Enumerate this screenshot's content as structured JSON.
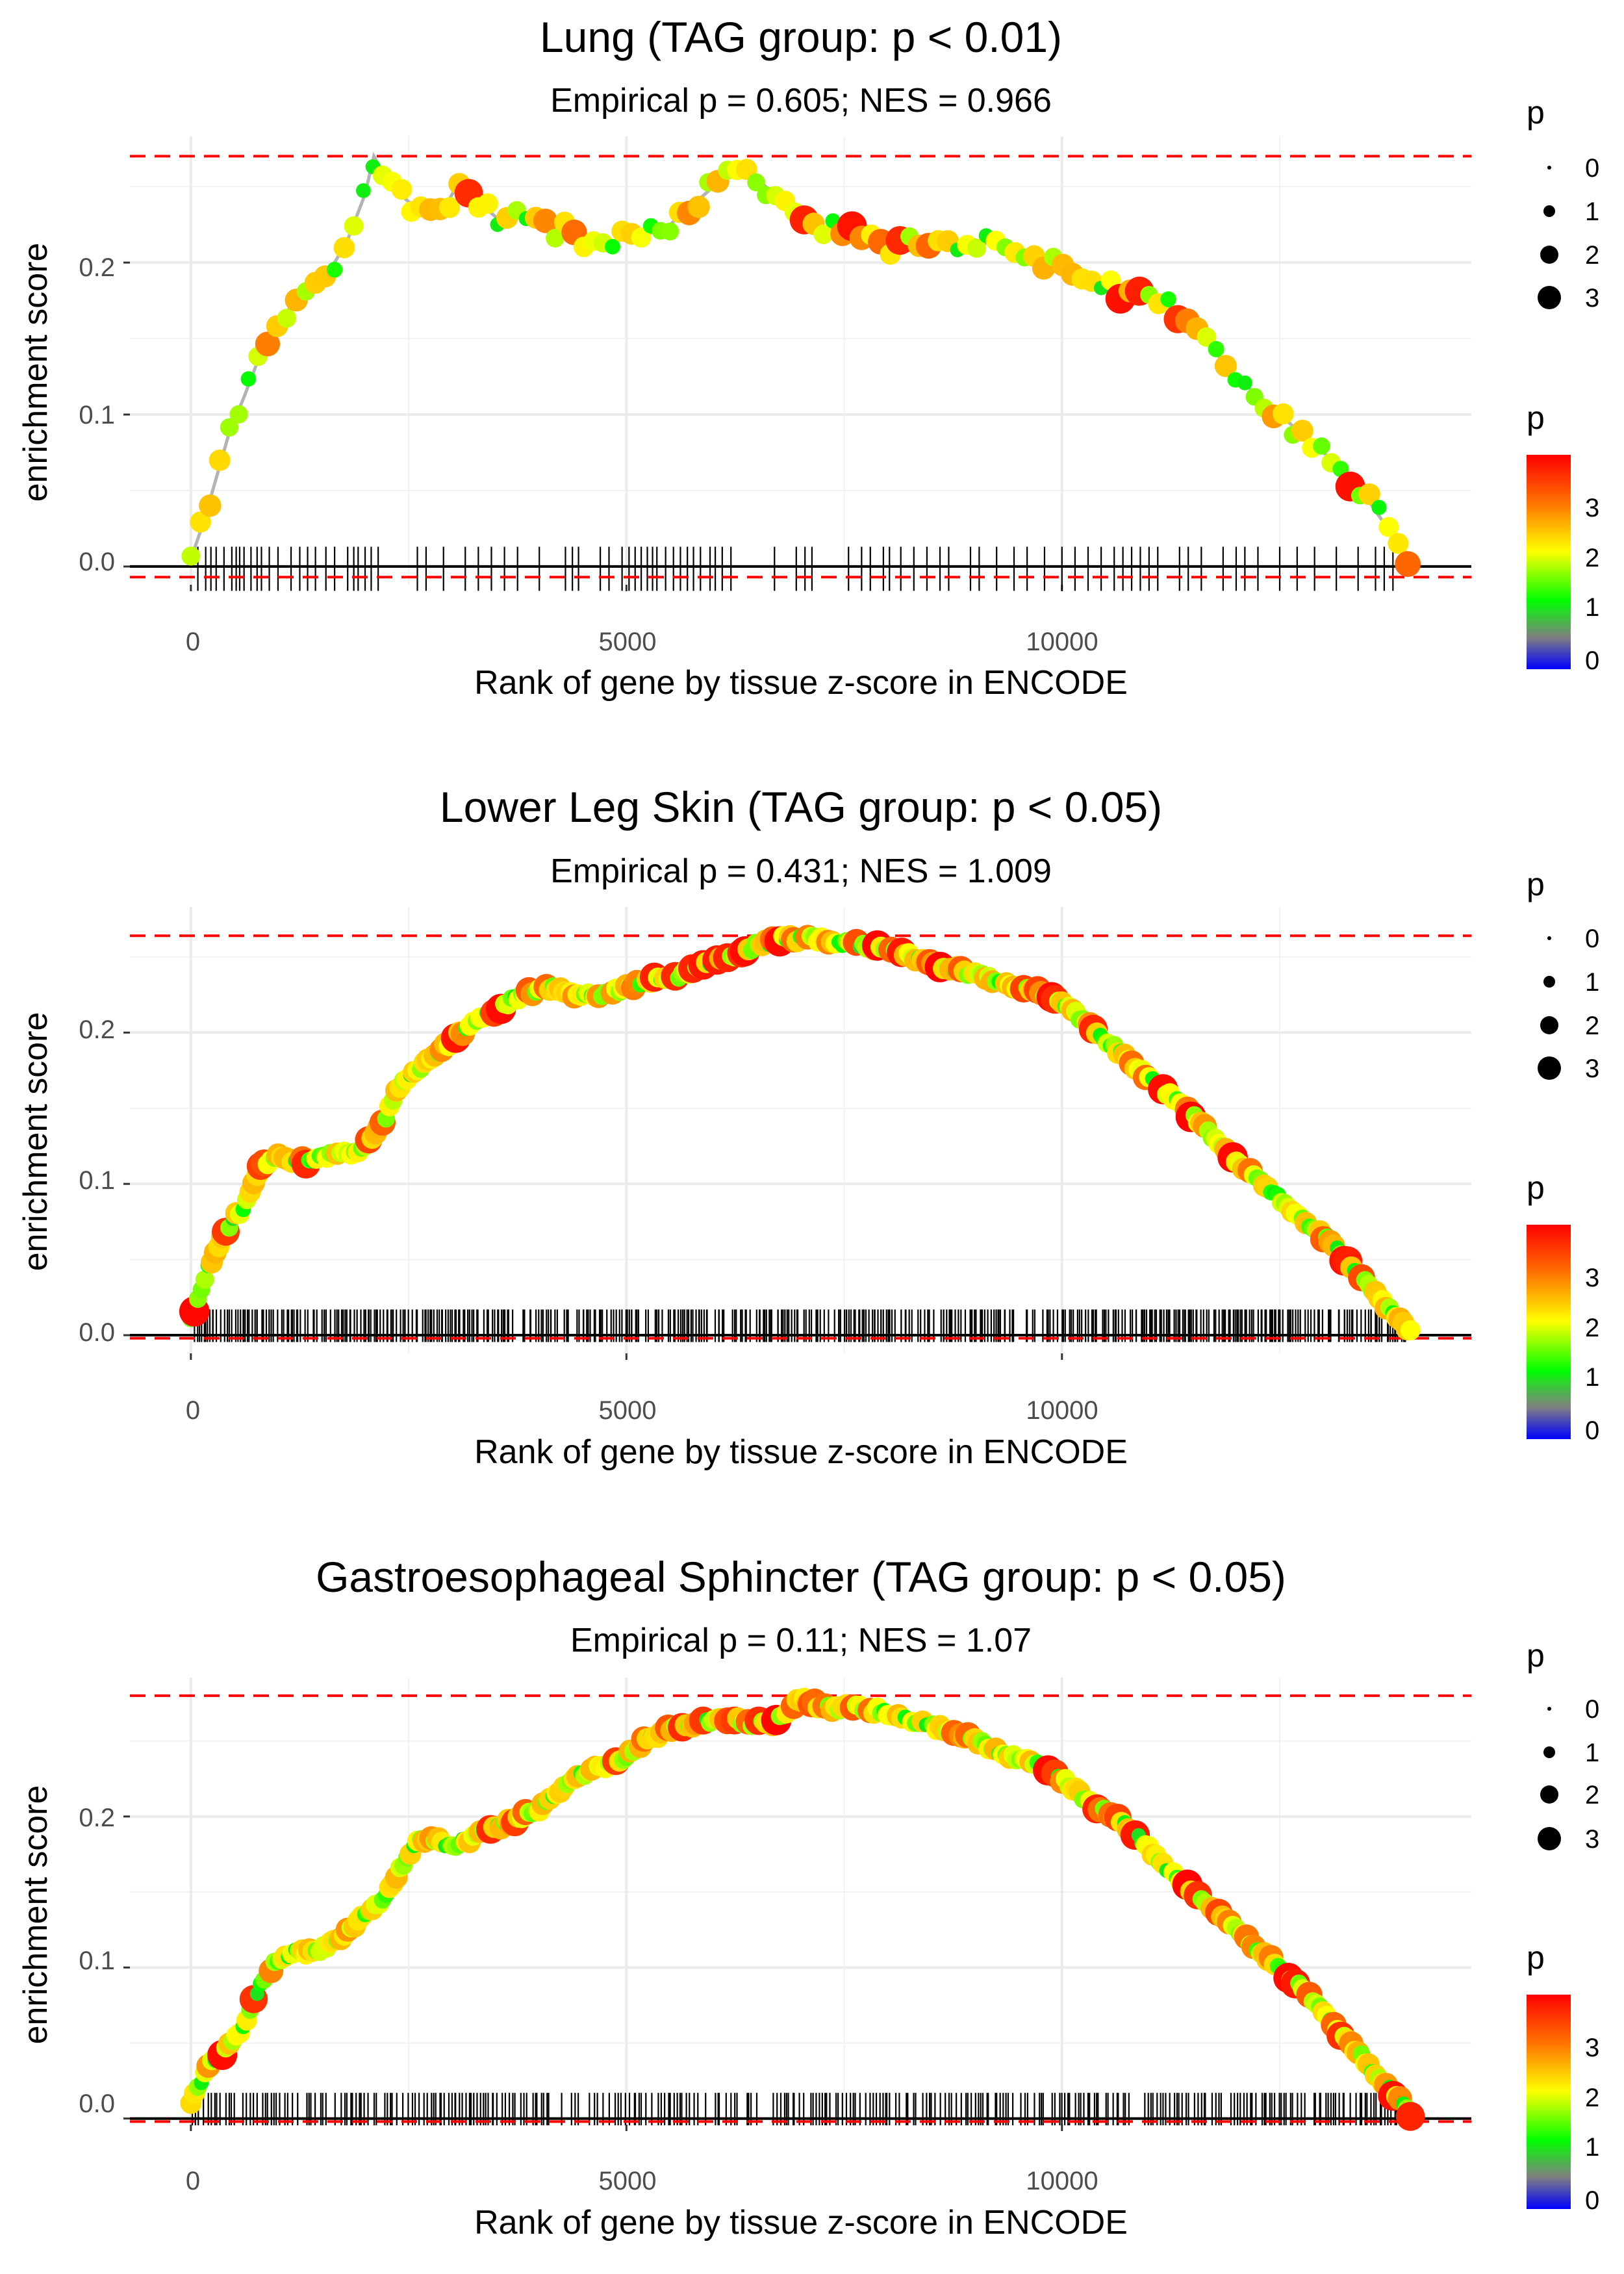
{
  "legend": {
    "size_title": "p",
    "size_labels": [
      "0",
      "1",
      "2",
      "3"
    ],
    "color_title": "p",
    "color_labels": [
      "3",
      "2",
      "1",
      "0"
    ]
  },
  "gradient_colors": [
    "#ff0000",
    "#ff7000",
    "#ffff00",
    "#00ff00",
    "#808080",
    "#0000ff"
  ],
  "chart_data": [
    {
      "type": "line",
      "title": "Lung (TAG group: p < 0.01)",
      "subtitle": "Empirical p = 0.605; NES = 0.966",
      "xlabel": "Rank of gene by tissue z-score in ENCODE",
      "ylabel": "enrichment score",
      "xlim": [
        -700,
        14700
      ],
      "ylim": [
        -0.012,
        0.283
      ],
      "xticks": [
        0,
        5000,
        10000
      ],
      "xtick_labels": [
        "0",
        "5000",
        "10000"
      ],
      "yticks": [
        0.0,
        0.1,
        0.2
      ],
      "ytick_labels": [
        "0.0",
        "0.1",
        "0.2"
      ],
      "hlines": {
        "max": 0.27,
        "min": -0.007
      },
      "grid": true,
      "curve": [
        [
          0,
          0.005
        ],
        [
          150,
          0.03
        ],
        [
          300,
          0.06
        ],
        [
          450,
          0.09
        ],
        [
          600,
          0.11
        ],
        [
          800,
          0.14
        ],
        [
          1000,
          0.16
        ],
        [
          1200,
          0.175
        ],
        [
          1400,
          0.18
        ],
        [
          1600,
          0.195
        ],
        [
          1800,
          0.215
        ],
        [
          2000,
          0.245
        ],
        [
          2100,
          0.27
        ],
        [
          2300,
          0.25
        ],
        [
          2500,
          0.24
        ],
        [
          2700,
          0.235
        ],
        [
          2900,
          0.235
        ],
        [
          3100,
          0.255
        ],
        [
          3300,
          0.24
        ],
        [
          3500,
          0.23
        ],
        [
          3700,
          0.23
        ],
        [
          3900,
          0.23
        ],
        [
          4100,
          0.22
        ],
        [
          4300,
          0.225
        ],
        [
          4500,
          0.215
        ],
        [
          4700,
          0.21
        ],
        [
          4900,
          0.215
        ],
        [
          5100,
          0.215
        ],
        [
          5300,
          0.22
        ],
        [
          5500,
          0.225
        ],
        [
          5700,
          0.235
        ],
        [
          5900,
          0.245
        ],
        [
          6100,
          0.255
        ],
        [
          6300,
          0.265
        ],
        [
          6600,
          0.25
        ],
        [
          6900,
          0.235
        ],
        [
          7200,
          0.225
        ],
        [
          7500,
          0.22
        ],
        [
          7800,
          0.215
        ],
        [
          8100,
          0.21
        ],
        [
          8400,
          0.215
        ],
        [
          8700,
          0.21
        ],
        [
          9000,
          0.215
        ],
        [
          9300,
          0.21
        ],
        [
          9600,
          0.205
        ],
        [
          9900,
          0.2
        ],
        [
          10200,
          0.19
        ],
        [
          10500,
          0.185
        ],
        [
          10800,
          0.18
        ],
        [
          11100,
          0.175
        ],
        [
          11400,
          0.165
        ],
        [
          11700,
          0.145
        ],
        [
          12000,
          0.125
        ],
        [
          12300,
          0.11
        ],
        [
          12600,
          0.095
        ],
        [
          12900,
          0.08
        ],
        [
          13200,
          0.065
        ],
        [
          13500,
          0.045
        ],
        [
          13800,
          0.02
        ],
        [
          14000,
          0.005
        ]
      ],
      "hits": [
        80,
        170,
        230,
        290,
        380,
        470,
        520,
        560,
        610,
        690,
        760,
        810,
        900,
        1000,
        1150,
        1250,
        1340,
        1430,
        1550,
        1650,
        1800,
        1870,
        1920,
        2000,
        2070,
        2150,
        2600,
        2700,
        2900,
        3150,
        3300,
        3450,
        3600,
        3750,
        4000,
        4300,
        4380,
        4450,
        4700,
        4800,
        4950,
        5030,
        5100,
        5170,
        5240,
        5300,
        5350,
        5450,
        5540,
        5620,
        5700,
        5770,
        5850,
        5960,
        6020,
        6100,
        6200,
        6700,
        6950,
        7050,
        7130,
        7550,
        7700,
        7800,
        7950,
        8020,
        8150,
        8300,
        8450,
        8600,
        8700,
        8950,
        9050,
        9250,
        9450,
        9600,
        9800,
        10000,
        10150,
        10300,
        10450,
        10600,
        10700,
        10800,
        10900,
        11000,
        11100,
        11350,
        11450,
        11600,
        11850,
        12000,
        12100,
        12250,
        12500,
        12700,
        12900,
        13150,
        13400,
        13600,
        13700,
        13800
      ]
    },
    {
      "type": "line",
      "title": "Lower Leg Skin (TAG group: p < 0.05)",
      "subtitle": "Empirical p = 0.431; NES = 1.009",
      "xlabel": "Rank of gene by tissue z-score in ENCODE",
      "ylabel": "enrichment score",
      "xlim": [
        -700,
        14700
      ],
      "ylim": [
        -0.012,
        0.283
      ],
      "xticks": [
        0,
        5000,
        10000
      ],
      "xtick_labels": [
        "0",
        "5000",
        "10000"
      ],
      "yticks": [
        0.0,
        0.1,
        0.2
      ],
      "ytick_labels": [
        "0.0",
        "0.1",
        "0.2"
      ],
      "hlines": {
        "max": 0.264,
        "min": -0.002
      },
      "grid": true,
      "curve": [
        [
          0,
          0.01
        ],
        [
          200,
          0.045
        ],
        [
          400,
          0.07
        ],
        [
          600,
          0.085
        ],
        [
          800,
          0.11
        ],
        [
          1000,
          0.12
        ],
        [
          1200,
          0.115
        ],
        [
          1400,
          0.115
        ],
        [
          1600,
          0.12
        ],
        [
          1800,
          0.12
        ],
        [
          2000,
          0.125
        ],
        [
          2200,
          0.14
        ],
        [
          2400,
          0.165
        ],
        [
          2600,
          0.175
        ],
        [
          2800,
          0.185
        ],
        [
          3000,
          0.195
        ],
        [
          3200,
          0.205
        ],
        [
          3500,
          0.215
        ],
        [
          3800,
          0.225
        ],
        [
          4100,
          0.23
        ],
        [
          4400,
          0.225
        ],
        [
          4700,
          0.225
        ],
        [
          5000,
          0.23
        ],
        [
          5300,
          0.235
        ],
        [
          5600,
          0.238
        ],
        [
          5900,
          0.245
        ],
        [
          6200,
          0.25
        ],
        [
          6500,
          0.258
        ],
        [
          6800,
          0.262
        ],
        [
          7100,
          0.262
        ],
        [
          7400,
          0.26
        ],
        [
          7700,
          0.258
        ],
        [
          8000,
          0.255
        ],
        [
          8300,
          0.25
        ],
        [
          8600,
          0.245
        ],
        [
          8900,
          0.24
        ],
        [
          9200,
          0.235
        ],
        [
          9500,
          0.23
        ],
        [
          9800,
          0.225
        ],
        [
          10100,
          0.215
        ],
        [
          10400,
          0.2
        ],
        [
          10700,
          0.185
        ],
        [
          11000,
          0.17
        ],
        [
          11300,
          0.155
        ],
        [
          11600,
          0.14
        ],
        [
          11900,
          0.12
        ],
        [
          12200,
          0.105
        ],
        [
          12500,
          0.09
        ],
        [
          12800,
          0.075
        ],
        [
          13100,
          0.06
        ],
        [
          13400,
          0.04
        ],
        [
          13700,
          0.02
        ],
        [
          14000,
          0.002
        ]
      ],
      "hits_density": 600
    },
    {
      "type": "line",
      "title": "Gastroesophageal Sphincter (TAG group: p < 0.05)",
      "subtitle": "Empirical p = 0.11; NES = 1.07",
      "xlabel": "Rank of gene by tissue z-score in ENCODE",
      "ylabel": "enrichment score",
      "xlim": [
        -700,
        14700
      ],
      "ylim": [
        -0.004,
        0.292
      ],
      "xticks": [
        0,
        5000,
        10000
      ],
      "xtick_labels": [
        "0",
        "5000",
        "10000"
      ],
      "yticks": [
        0.0,
        0.1,
        0.2
      ],
      "ytick_labels": [
        "0.0",
        "0.1",
        "0.2"
      ],
      "hlines": {
        "max": 0.28,
        "min": -0.002
      },
      "grid": true,
      "curve": [
        [
          0,
          0.01
        ],
        [
          200,
          0.035
        ],
        [
          400,
          0.045
        ],
        [
          600,
          0.06
        ],
        [
          800,
          0.09
        ],
        [
          1000,
          0.105
        ],
        [
          1200,
          0.11
        ],
        [
          1400,
          0.11
        ],
        [
          1600,
          0.115
        ],
        [
          1800,
          0.125
        ],
        [
          2000,
          0.135
        ],
        [
          2200,
          0.145
        ],
        [
          2400,
          0.165
        ],
        [
          2600,
          0.185
        ],
        [
          2800,
          0.185
        ],
        [
          3000,
          0.18
        ],
        [
          3200,
          0.185
        ],
        [
          3400,
          0.19
        ],
        [
          3600,
          0.195
        ],
        [
          3800,
          0.2
        ],
        [
          4000,
          0.205
        ],
        [
          4200,
          0.215
        ],
        [
          4400,
          0.225
        ],
        [
          4600,
          0.23
        ],
        [
          4800,
          0.235
        ],
        [
          5000,
          0.24
        ],
        [
          5200,
          0.25
        ],
        [
          5500,
          0.258
        ],
        [
          5800,
          0.262
        ],
        [
          6100,
          0.265
        ],
        [
          6400,
          0.262
        ],
        [
          6700,
          0.262
        ],
        [
          7000,
          0.278
        ],
        [
          7300,
          0.272
        ],
        [
          7600,
          0.272
        ],
        [
          7900,
          0.27
        ],
        [
          8200,
          0.265
        ],
        [
          8500,
          0.26
        ],
        [
          8800,
          0.255
        ],
        [
          9100,
          0.248
        ],
        [
          9400,
          0.24
        ],
        [
          9700,
          0.235
        ],
        [
          10000,
          0.225
        ],
        [
          10300,
          0.21
        ],
        [
          10600,
          0.2
        ],
        [
          10900,
          0.185
        ],
        [
          11200,
          0.165
        ],
        [
          11500,
          0.15
        ],
        [
          11800,
          0.135
        ],
        [
          12100,
          0.12
        ],
        [
          12400,
          0.105
        ],
        [
          12700,
          0.09
        ],
        [
          13000,
          0.07
        ],
        [
          13300,
          0.05
        ],
        [
          13600,
          0.03
        ],
        [
          13900,
          0.01
        ],
        [
          14000,
          0.002
        ]
      ],
      "hits_density": 420
    }
  ]
}
